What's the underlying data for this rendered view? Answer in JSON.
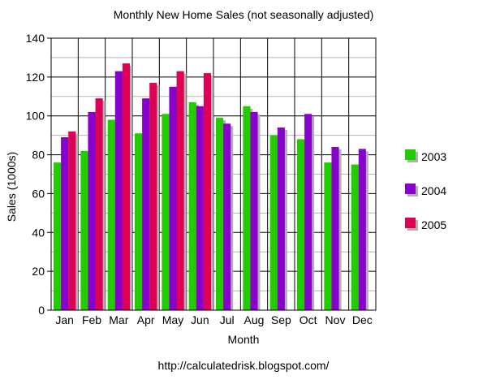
{
  "chart_data": {
    "type": "bar",
    "title": "Monthly New Home Sales (not seasonally adjusted)",
    "xlabel": "Month",
    "ylabel": "Sales (1000s)",
    "categories": [
      "Jan",
      "Feb",
      "Mar",
      "Apr",
      "May",
      "Jun",
      "Jul",
      "Aug",
      "Sep",
      "Oct",
      "Nov",
      "Dec"
    ],
    "ylim": [
      0,
      140
    ],
    "yticks": [
      0,
      20,
      40,
      60,
      80,
      100,
      120,
      140
    ],
    "grid": true,
    "legend_position": "right",
    "series": [
      {
        "name": "2003",
        "color": "#22cc00",
        "values": [
          76,
          82,
          98,
          91,
          101,
          107,
          99,
          105,
          90,
          88,
          76,
          75
        ]
      },
      {
        "name": "2004",
        "color": "#8800cc",
        "values": [
          89,
          102,
          123,
          109,
          115,
          105,
          96,
          102,
          94,
          101,
          84,
          83
        ]
      },
      {
        "name": "2005",
        "color": "#dd0055",
        "values": [
          92,
          109,
          127,
          117,
          123,
          122,
          null,
          null,
          null,
          null,
          null,
          null
        ]
      }
    ]
  },
  "footer": "http://calculatedrisk.blogspot.com/"
}
